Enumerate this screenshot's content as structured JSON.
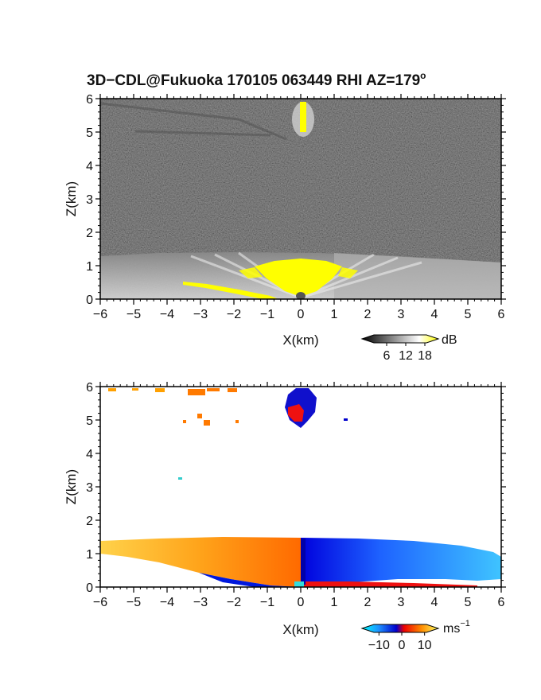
{
  "chart_data": [
    {
      "type": "heatmap",
      "title": "3D−CDL@Fukuoka 170105 063449 RHI AZ=179",
      "title_superscript": "o",
      "xlabel": "X(km)",
      "ylabel": "Z(km)",
      "xlim": [
        -6,
        6
      ],
      "ylim": [
        0,
        6
      ],
      "x_ticks": [
        "−6",
        "−5",
        "−4",
        "−3",
        "−2",
        "−1",
        "0",
        "1",
        "2",
        "3",
        "4",
        "5",
        "6"
      ],
      "y_ticks": [
        "0",
        "1",
        "2",
        "3",
        "4",
        "5",
        "6"
      ],
      "grid": false,
      "colorbar": {
        "unit": "dB",
        "ticks": [
          "6",
          "12",
          "18"
        ],
        "range": [
          0,
          20
        ],
        "colors": [
          "#000000",
          "#ffffff",
          "#ffff00"
        ]
      },
      "features": [
        {
          "name": "boundary layer echo",
          "x_range": [
            -6,
            6
          ],
          "z_top_km": 1.3,
          "value_dB": 10
        },
        {
          "name": "strong echo near radar",
          "x_range": [
            -1,
            1
          ],
          "z_range": [
            0,
            1.1
          ],
          "value_dB": 20
        },
        {
          "name": "low-level strong echo",
          "x_range": [
            -3.5,
            -1
          ],
          "z_range": [
            0,
            0.5
          ],
          "value_dB": 20
        },
        {
          "name": "cloud echo aloft",
          "x_range": [
            -0.1,
            0.3
          ],
          "z_range": [
            5.0,
            6.0
          ],
          "value_dB": 20
        }
      ]
    },
    {
      "type": "heatmap",
      "xlabel": "X(km)",
      "ylabel": "Z(km)",
      "xlim": [
        -6,
        6
      ],
      "ylim": [
        0,
        6
      ],
      "x_ticks": [
        "−6",
        "−5",
        "−4",
        "−3",
        "−2",
        "−1",
        "0",
        "1",
        "2",
        "3",
        "4",
        "5",
        "6"
      ],
      "y_ticks": [
        "0",
        "1",
        "2",
        "3",
        "4",
        "5",
        "6"
      ],
      "grid": false,
      "colorbar": {
        "unit": "ms",
        "unit_superscript": "−1",
        "ticks": [
          "−10",
          "0",
          "10"
        ],
        "range": [
          -15,
          15
        ]
      },
      "features": [
        {
          "name": "outflow west of radar",
          "x_range": [
            -6,
            0
          ],
          "z_top_km": 1.4,
          "velocity_ms": 8
        },
        {
          "name": "outflow east of radar",
          "x_range": [
            0,
            6
          ],
          "z_top_km": 1.4,
          "velocity_ms": -8
        },
        {
          "name": "cloud echo aloft",
          "x_range": [
            -0.4,
            0.5
          ],
          "z_range": [
            4.8,
            6.0
          ],
          "velocity_ms": "mixed"
        },
        {
          "name": "upper-level returns",
          "x_range": [
            -6,
            -2
          ],
          "z_range": [
            4.8,
            6.0
          ],
          "velocity_ms": 10
        }
      ]
    }
  ]
}
